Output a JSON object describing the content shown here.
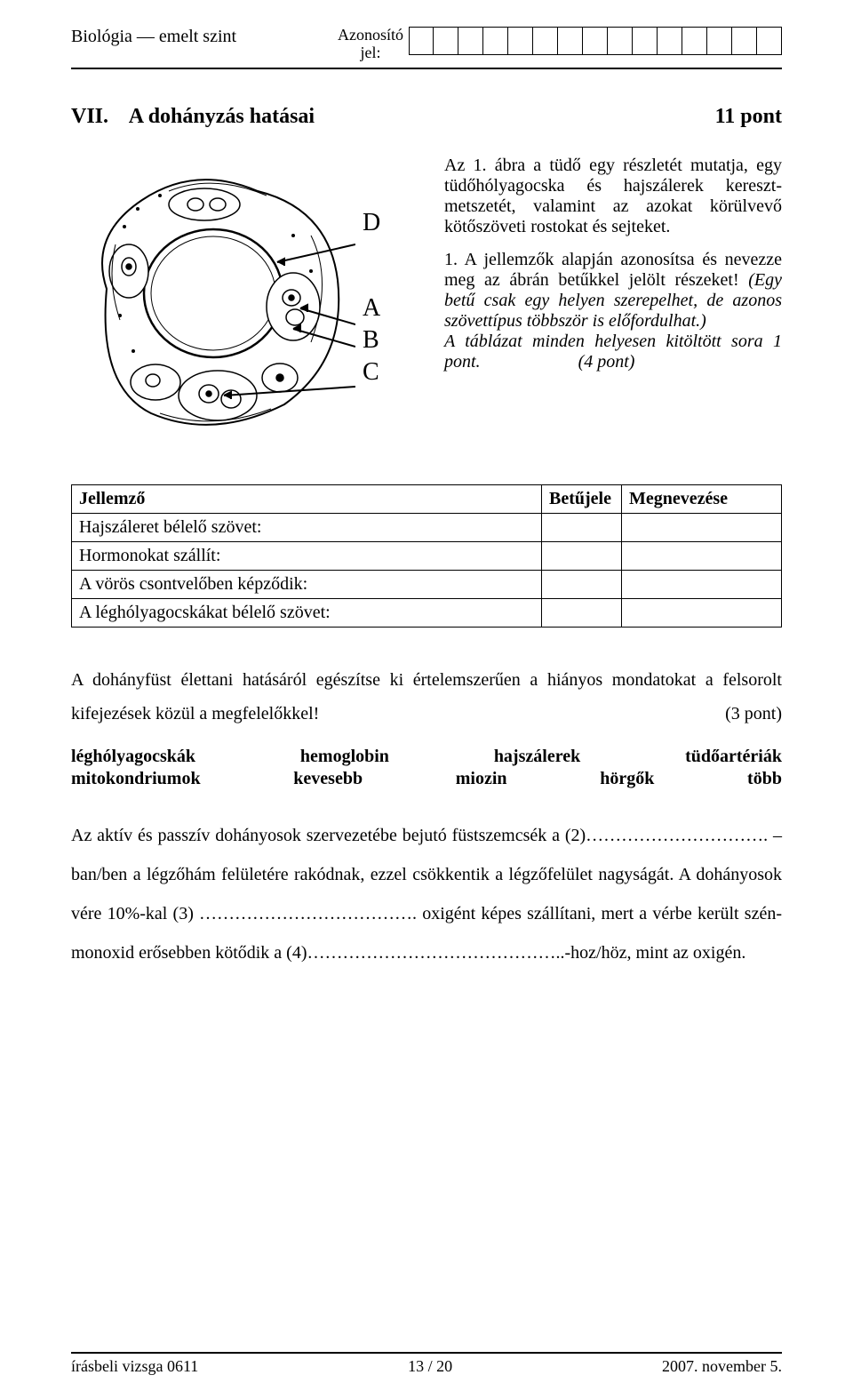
{
  "header": {
    "subject": "Biológia — emelt szint",
    "id_label_top": "Azonosító",
    "id_label_bottom": "jel:",
    "id_box_count": 15
  },
  "section": {
    "number": "VII.",
    "title": "A dohányzás hatásai",
    "points_label": "11 pont"
  },
  "figure": {
    "labels": [
      "D",
      "A",
      "B",
      "C"
    ],
    "stroke": "#000000",
    "fill": "#ffffff"
  },
  "intro": {
    "p1": "Az 1. ábra a tüdő egy részletét mutatja, egy tüdőhólyagocska és hajszálerek kereszt­metszetét, valamint az azokat körülvevő kötőszöveti rostokat és sejteket.",
    "q1_lead": "1. A jellemzők alapján azonosítsa és nevezze meg az ábrán betűkkel jelölt részeket! ",
    "q1_italic": "(Egy betű csak egy helyen szerepelhet, de azonos szövettípus többször is előfordulhat.)",
    "q1_rule": "A táblázat minden helyesen kitöltött sora 1 pont.",
    "q1_points": "(4 pont)"
  },
  "table": {
    "headers": [
      "Jellemző",
      "Betűjele",
      "Megnevezése"
    ],
    "rows": [
      "Hajszáleret bélelő szövet:",
      "Hormonokat szállít:",
      "A vörös csontvelőben képződik:",
      "A léghólyagocskákat bélelő szövet:"
    ]
  },
  "fill": {
    "instruction": "A dohányfüst élettani hatásáról egészítse ki értelemszerűen a hiányos mondatokat a felsorolt kifejezések közül a megfelelőkkel!",
    "instruction_points": "(3 pont)",
    "words_row1": [
      "léghólyagocskák",
      "hemoglobin",
      "hajszálerek",
      "tüdőartériák"
    ],
    "words_row2": [
      "mitokondriumok",
      "kevesebb",
      "miozin",
      "hörgők",
      "több"
    ],
    "sentence": "Az aktív és passzív dohányosok szervezetébe bejutó füstszemcsék a (2)…………………………. – ban/ben a légzőhám felületére rakódnak, ezzel csökkentik a légzőfelület nagyságát.  A dohányosok vére 10%-kal (3) ………………………………. oxigént képes szállítani, mert a vérbe került szén-monoxid erősebben kötődik a (4)……………………………………..-hoz/höz, mint az oxigén."
  },
  "footer": {
    "left": "írásbeli vizsga 0611",
    "center": "13 / 20",
    "right": "2007. november 5."
  }
}
